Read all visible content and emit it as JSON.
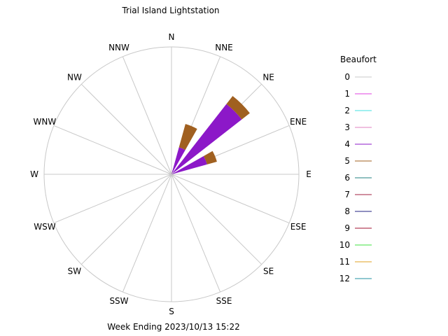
{
  "chart_data": {
    "type": "wind-rose",
    "title": "Trial Island Lightstation",
    "footer": "Week Ending 2023/10/13 15:22",
    "legend_title": "Beaufort",
    "legend": [
      {
        "label": "0",
        "color": "#c8c8c8"
      },
      {
        "label": "1",
        "color": "#e040e0"
      },
      {
        "label": "2",
        "color": "#40e0e0"
      },
      {
        "label": "3",
        "color": "#e080c0"
      },
      {
        "label": "4",
        "color": "#8c18c8"
      },
      {
        "label": "5",
        "color": "#a06020"
      },
      {
        "label": "6",
        "color": "#208080"
      },
      {
        "label": "7",
        "color": "#a02040"
      },
      {
        "label": "8",
        "color": "#202080"
      },
      {
        "label": "9",
        "color": "#a01030"
      },
      {
        "label": "10",
        "color": "#40e040"
      },
      {
        "label": "11",
        "color": "#e0a020"
      },
      {
        "label": "12",
        "color": "#2090a0"
      }
    ],
    "directions": [
      "N",
      "NNE",
      "NE",
      "ENE",
      "E",
      "ESE",
      "SE",
      "SSE",
      "S",
      "SSW",
      "SW",
      "WSW",
      "W",
      "WNW",
      "NW",
      "NNW"
    ],
    "grid": true,
    "radial_max": 1.0,
    "sectors": [
      {
        "direction": "NE",
        "bands": [
          {
            "beaufort": "0",
            "value": 0.02
          },
          {
            "beaufort": "4",
            "value": 0.68
          },
          {
            "beaufort": "5",
            "value": 0.08
          }
        ]
      },
      {
        "direction": "NNE",
        "bands": [
          {
            "beaufort": "4",
            "value": 0.22
          },
          {
            "beaufort": "5",
            "value": 0.19
          }
        ]
      },
      {
        "direction": "ENE",
        "bands": [
          {
            "beaufort": "4",
            "value": 0.29
          },
          {
            "beaufort": "5",
            "value": 0.08
          }
        ]
      }
    ]
  },
  "colors": {
    "grid": "#c8c8c8",
    "background": "#ffffff",
    "text": "#000000"
  }
}
